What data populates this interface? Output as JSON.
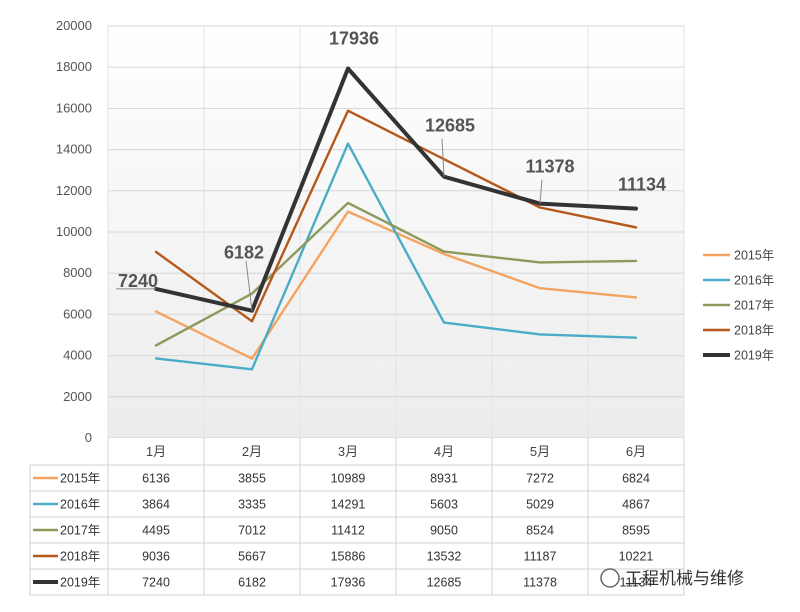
{
  "chart_data": {
    "type": "line",
    "title": "",
    "xlabel": "",
    "ylabel": "",
    "categories": [
      "1月",
      "2月",
      "3月",
      "4月",
      "5月",
      "6月"
    ],
    "ylim": [
      0,
      20000
    ],
    "yticks": [
      0,
      2000,
      4000,
      6000,
      8000,
      10000,
      12000,
      14000,
      16000,
      18000,
      20000
    ],
    "legend_position": "right",
    "grid": true,
    "series": [
      {
        "name": "2015年",
        "color": "#F4A460",
        "values": [
          6136,
          3855,
          10989,
          8931,
          7272,
          6824
        ]
      },
      {
        "name": "2016年",
        "color": "#4BACC6",
        "values": [
          3864,
          3335,
          14291,
          5603,
          5029,
          4867
        ]
      },
      {
        "name": "2017年",
        "color": "#8C9A5B",
        "values": [
          4495,
          7012,
          11412,
          9050,
          8524,
          8595
        ]
      },
      {
        "name": "2018年",
        "color": "#B5581A",
        "values": [
          9036,
          5667,
          15886,
          13532,
          11187,
          10221
        ]
      },
      {
        "name": "2019年",
        "color": "#333333",
        "values": [
          7240,
          6182,
          17936,
          12685,
          11378,
          11134
        ]
      }
    ],
    "annotations": [
      {
        "series": "2019年",
        "index": 0,
        "text": "7240"
      },
      {
        "series": "2019年",
        "index": 1,
        "text": "6182"
      },
      {
        "series": "2019年",
        "index": 2,
        "text": "17936"
      },
      {
        "series": "2019年",
        "index": 3,
        "text": "12685"
      },
      {
        "series": "2019年",
        "index": 4,
        "text": "11378"
      },
      {
        "series": "2019年",
        "index": 5,
        "text": "11134"
      }
    ]
  },
  "watermark": {
    "text": "工程机械与维修"
  }
}
